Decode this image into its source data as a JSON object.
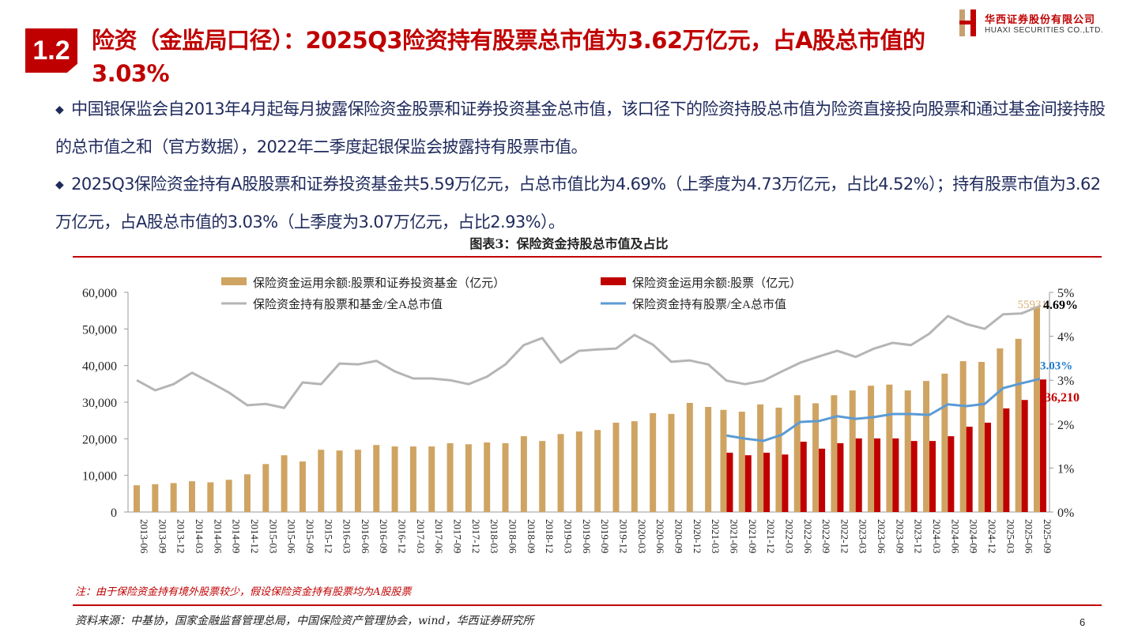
{
  "header": {
    "section_number": "1.2",
    "title": "险资（金监局口径）：2025Q3险资持有股票总市值为3.62万亿元，占A股总市值的3.03%",
    "logo_cn": "华西证券股份有限公司",
    "logo_en": "HUAXI SECURITIES CO.,LTD."
  },
  "body": {
    "bullets": [
      "中国银保监会自2013年4月起每月披露保险资金股票和证券投资基金总市值，该口径下的险资持股总市值为险资直接投向股票和通过基金间接持股的总市值之和（官方数据），2022年二季度起银保监会披露持有股票市值。",
      "2025Q3保险资金持有A股股票和证券投资基金共5.59万亿元，占总市值比为4.69%（上季度为4.73万亿元，占比4.52%）；持有股票市值为3.62万亿元，占A股总市值的3.03%（上季度为3.07万亿元，占比2.93%）。"
    ],
    "bullet_icon": "diamond-bullet-icon"
  },
  "figure_title": "图表3：保险资金持股总市值及占比",
  "note": "注：由于保险资金持有境外股票较少，假设保险资金持有股票均为A股股票",
  "source": "资料来源：中基协，国家金融监督管理总局，中国保险资产管理协会，wind，华西证券研究所",
  "page_number": "6",
  "chart_data": {
    "type": "bar",
    "title": "",
    "xlabel": "",
    "ylabel": "",
    "y2label": "",
    "ylim": [
      0,
      60000
    ],
    "y2lim": [
      0,
      5
    ],
    "yticks": [
      "0",
      "10,000",
      "20,000",
      "30,000",
      "40,000",
      "50,000",
      "60,000"
    ],
    "y2ticks": [
      "0%",
      "1%",
      "2%",
      "3%",
      "4%",
      "5%"
    ],
    "grid": false,
    "legend_placement": "top",
    "categories": [
      "2013-06",
      "2013-09",
      "2013-12",
      "2014-03",
      "2014-06",
      "2014-09",
      "2014-12",
      "2015-03",
      "2015-06",
      "2015-09",
      "2015-12",
      "2016-03",
      "2016-06",
      "2016-09",
      "2016-12",
      "2017-03",
      "2017-06",
      "2017-09",
      "2017-12",
      "2018-03",
      "2018-06",
      "2018-09",
      "2018-12",
      "2019-03",
      "2019-06",
      "2019-09",
      "2019-12",
      "2020-03",
      "2020-06",
      "2020-09",
      "2020-12",
      "2021-03",
      "2021-06",
      "2021-09",
      "2021-12",
      "2022-03",
      "2022-06",
      "2022-09",
      "2022-12",
      "2023-03",
      "2023-06",
      "2023-09",
      "2023-12",
      "2024-03",
      "2024-06",
      "2024-09",
      "2024-12",
      "2025-03",
      "2025-06",
      "2025-09"
    ],
    "series": [
      {
        "name": "保险资金运用余额:股票和证券投资基金（亿元）",
        "kind": "bar",
        "axis": "left",
        "color": "#cfa462",
        "values": [
          7300,
          7600,
          7900,
          8400,
          8100,
          8800,
          10300,
          13100,
          15500,
          13800,
          17000,
          16800,
          17000,
          18300,
          17900,
          17900,
          17900,
          18800,
          18500,
          19000,
          18800,
          20700,
          19400,
          21300,
          22000,
          22400,
          24400,
          24800,
          27000,
          26800,
          29800,
          28700,
          27900,
          27400,
          29400,
          28500,
          31900,
          29700,
          31900,
          33200,
          34500,
          34800,
          33200,
          35800,
          37800,
          41200,
          41000,
          44700,
          47300,
          55931
        ]
      },
      {
        "name": "保险资金运用余额:股票（亿元）",
        "kind": "bar",
        "axis": "left",
        "color": "#c00000",
        "values": [
          null,
          null,
          null,
          null,
          null,
          null,
          null,
          null,
          null,
          null,
          null,
          null,
          null,
          null,
          null,
          null,
          null,
          null,
          null,
          null,
          null,
          null,
          null,
          null,
          null,
          null,
          null,
          null,
          null,
          null,
          null,
          null,
          16200,
          15500,
          16200,
          15700,
          19200,
          17300,
          18800,
          20100,
          20100,
          20100,
          19400,
          19400,
          20700,
          23300,
          24400,
          28300,
          30600,
          36210
        ]
      },
      {
        "name": "保险资金持有股票和基金/全A总市值",
        "kind": "line",
        "axis": "right",
        "color": "#b5b5b5",
        "values": [
          3.0,
          2.77,
          2.91,
          3.17,
          2.95,
          2.72,
          2.43,
          2.46,
          2.37,
          2.95,
          2.91,
          3.38,
          3.36,
          3.44,
          3.2,
          3.04,
          3.04,
          3.0,
          2.91,
          3.08,
          3.36,
          3.8,
          3.96,
          3.4,
          3.67,
          3.7,
          3.72,
          4.03,
          3.81,
          3.42,
          3.45,
          3.36,
          2.99,
          2.91,
          2.99,
          3.2,
          3.4,
          3.54,
          3.67,
          3.53,
          3.72,
          3.85,
          3.8,
          4.06,
          4.46,
          4.28,
          4.17,
          4.5,
          4.52,
          4.69
        ]
      },
      {
        "name": "保险资金持有股票/全A总市值",
        "kind": "line",
        "axis": "right",
        "color": "#5b9bd5",
        "values": [
          null,
          null,
          null,
          null,
          null,
          null,
          null,
          null,
          null,
          null,
          null,
          null,
          null,
          null,
          null,
          null,
          null,
          null,
          null,
          null,
          null,
          null,
          null,
          null,
          null,
          null,
          null,
          null,
          null,
          null,
          null,
          null,
          1.74,
          1.67,
          1.62,
          1.76,
          2.05,
          2.07,
          2.18,
          2.12,
          2.16,
          2.23,
          2.23,
          2.21,
          2.45,
          2.41,
          2.46,
          2.82,
          2.93,
          3.03
        ]
      }
    ],
    "annotations": [
      {
        "text": "55931",
        "color": "#d9b27a"
      },
      {
        "text": "4.69%",
        "color": "#000000"
      },
      {
        "text": "3.03%",
        "color": "#1f7bd0"
      },
      {
        "text": "36,210",
        "color": "#c00000"
      }
    ]
  }
}
